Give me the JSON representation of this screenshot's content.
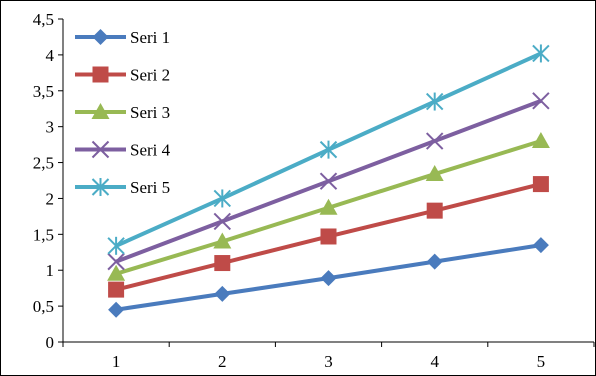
{
  "chart_data": {
    "type": "line",
    "x": [
      1,
      2,
      3,
      4,
      5
    ],
    "x_tick_labels": [
      "1",
      "2",
      "3",
      "4",
      "5"
    ],
    "y_tick_labels": [
      "0",
      "0,5",
      "1",
      "1,5",
      "2",
      "2,5",
      "3",
      "3,5",
      "4",
      "4,5"
    ],
    "ylim": [
      0,
      4.5
    ],
    "y_step": 0.5,
    "grid": false,
    "legend_placement": "top-left",
    "series": [
      {
        "name": "Seri 1",
        "values": [
          0.45,
          0.67,
          0.89,
          1.12,
          1.35
        ],
        "color": "#4a7bbd",
        "marker": "diamond"
      },
      {
        "name": "Seri 2",
        "values": [
          0.73,
          1.1,
          1.47,
          1.83,
          2.2
        ],
        "color": "#bf4b48",
        "marker": "square"
      },
      {
        "name": "Seri 3",
        "values": [
          0.95,
          1.4,
          1.87,
          2.34,
          2.8
        ],
        "color": "#98b954",
        "marker": "triangle"
      },
      {
        "name": "Seri 4",
        "values": [
          1.12,
          1.68,
          2.24,
          2.8,
          3.36
        ],
        "color": "#7d5fa0",
        "marker": "x"
      },
      {
        "name": "Seri 5",
        "values": [
          1.34,
          2.0,
          2.68,
          3.35,
          4.02
        ],
        "color": "#4bacc6",
        "marker": "star"
      }
    ]
  }
}
